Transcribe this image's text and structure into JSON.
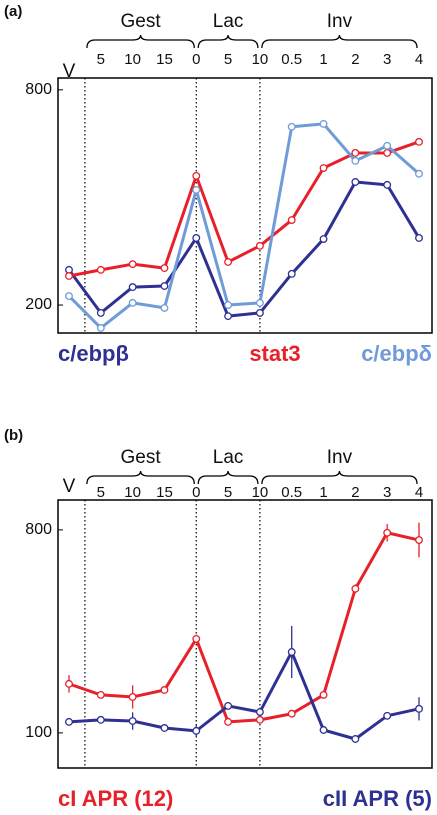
{
  "chart_data": [
    {
      "type": "line",
      "panel": "(a)",
      "categories": [
        "V",
        "5",
        "10",
        "15",
        "0",
        "5",
        "10",
        "0.5",
        "1",
        "2",
        "3",
        "4"
      ],
      "groups": [
        {
          "label": "Gest",
          "start": 0.5,
          "end": 4
        },
        {
          "label": "Lac",
          "start": 4,
          "end": 6
        },
        {
          "label": "Inv",
          "start": 6,
          "end": 11
        }
      ],
      "ylim": [
        122,
        833
      ],
      "yticks": [
        200,
        800
      ],
      "series": [
        {
          "name": "c/ebpβ",
          "color": "#2e3192",
          "values": [
            298,
            178,
            250,
            253,
            387,
            169,
            178,
            287,
            384,
            543,
            535,
            387
          ]
        },
        {
          "name": "stat3",
          "color": "#e8202a",
          "values": [
            281,
            298,
            314,
            303,
            560,
            320,
            365,
            437,
            582,
            624,
            624,
            655
          ]
        },
        {
          "name": "c/ebpδ",
          "color": "#6f9bd8",
          "values": [
            225,
            136,
            206,
            192,
            521,
            200,
            206,
            697,
            705,
            602,
            644,
            566
          ]
        }
      ]
    },
    {
      "type": "line",
      "panel": "(b)",
      "categories": [
        "V",
        "5",
        "10",
        "15",
        "0",
        "5",
        "10",
        "0.5",
        "1",
        "2",
        "3",
        "4"
      ],
      "groups": [
        {
          "label": "Gest",
          "start": 0.5,
          "end": 4
        },
        {
          "label": "Lac",
          "start": 4,
          "end": 6
        },
        {
          "label": "Inv",
          "start": 6,
          "end": 11
        }
      ],
      "ylim": [
        -21,
        903
      ],
      "yticks": [
        100,
        800
      ],
      "series": [
        {
          "name": "cI APR (12)",
          "color": "#e8202a",
          "values": [
            269,
            231,
            224,
            248,
            424,
            138,
            145,
            166,
            231,
            597,
            790,
            765
          ],
          "errors": [
            30,
            10,
            40,
            10,
            15,
            10,
            10,
            10,
            10,
            15,
            30,
            60
          ]
        },
        {
          "name": "cII APR (5)",
          "color": "#2e3192",
          "values": [
            138,
            145,
            141,
            117,
            107,
            193,
            172,
            379,
            110,
            79,
            159,
            183
          ],
          "errors": [
            10,
            10,
            30,
            10,
            20,
            10,
            15,
            90,
            10,
            10,
            10,
            40
          ]
        }
      ]
    }
  ]
}
